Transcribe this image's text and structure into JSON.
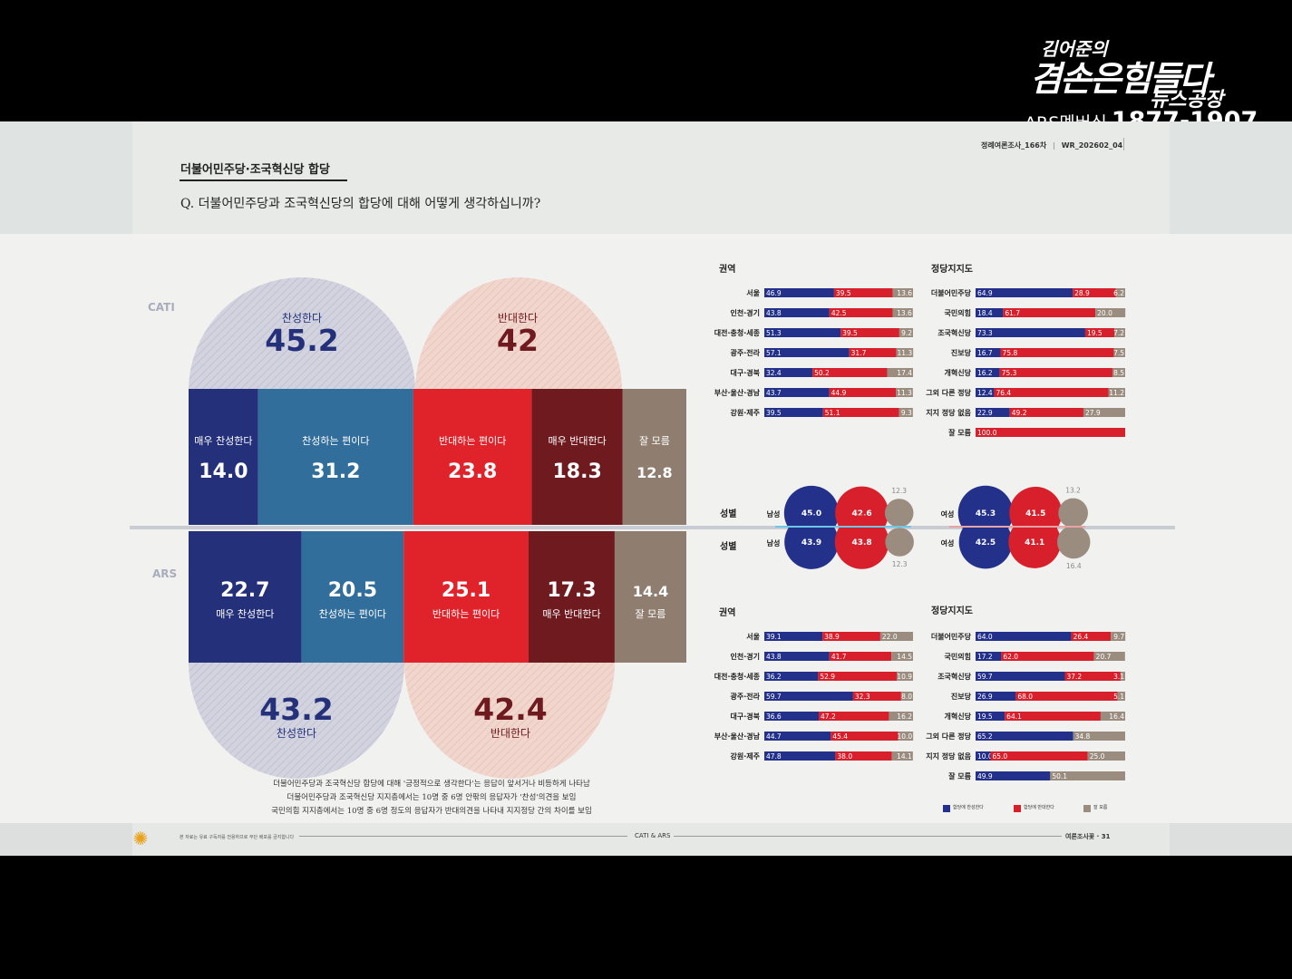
{
  "logo": {
    "line1": "김어준의",
    "line2": "겸손은힘들다",
    "line3": "뉴스공장",
    "membership_label": "ARS멤버십",
    "membership_number": "1877-1907"
  },
  "header": {
    "code_left": "정례여론조사_166차",
    "code_right": "WR_202602_04",
    "title": "더불어민주당·조국혁신당 합당",
    "question": "Q. 더불어민주당과 조국혁신당의 합당에 대해 어떻게 생각하십니까?"
  },
  "chart_data": [
    {
      "type": "bar",
      "name": "CATI",
      "group_label": "CATI",
      "summary": [
        {
          "label": "찬성한다",
          "value": 45.2
        },
        {
          "label": "반대한다",
          "value": 42.0
        }
      ],
      "categories": [
        "매우 찬성한다",
        "찬성하는 편이다",
        "반대하는 편이다",
        "매우 반대한다",
        "잘 모름"
      ],
      "values": [
        14.0,
        31.2,
        23.8,
        18.3,
        12.8
      ]
    },
    {
      "type": "bar",
      "name": "ARS",
      "group_label": "ARS",
      "summary": [
        {
          "label": "찬성한다",
          "value": 43.2
        },
        {
          "label": "반대한다",
          "value": 42.4
        }
      ],
      "categories": [
        "매우 찬성한다",
        "찬성하는 편이다",
        "반대하는 편이다",
        "매우 반대한다",
        "잘 모름"
      ],
      "values": [
        22.7,
        20.5,
        25.1,
        17.3,
        14.4
      ]
    },
    {
      "type": "bar",
      "name": "CATI 권역",
      "title": "권역",
      "stacked": true,
      "categories": [
        "서울",
        "인천·경기",
        "대전·충청·세종",
        "광주·전라",
        "대구·경북",
        "부산·울산·경남",
        "강원·제주"
      ],
      "series": [
        {
          "name": "합당에 찬성한다",
          "values": [
            46.9,
            43.8,
            51.3,
            57.1,
            32.4,
            43.7,
            39.5
          ]
        },
        {
          "name": "합당에 반대한다",
          "values": [
            39.5,
            42.5,
            39.5,
            31.7,
            50.2,
            44.9,
            51.1
          ]
        },
        {
          "name": "잘 모름",
          "values": [
            13.6,
            13.6,
            9.2,
            11.3,
            17.4,
            11.3,
            9.3
          ]
        }
      ]
    },
    {
      "type": "bar",
      "name": "CATI 정당지지도",
      "title": "정당지지도",
      "stacked": true,
      "categories": [
        "더불어민주당",
        "국민의힘",
        "조국혁신당",
        "진보당",
        "개혁신당",
        "그외 다른 정당",
        "지지 정당 없음",
        "잘 모름"
      ],
      "series": [
        {
          "name": "합당에 찬성한다",
          "values": [
            64.9,
            18.4,
            73.3,
            16.7,
            16.2,
            12.4,
            22.9,
            0
          ]
        },
        {
          "name": "합당에 반대한다",
          "values": [
            28.9,
            61.7,
            19.5,
            75.8,
            75.3,
            76.4,
            49.2,
            100.0
          ]
        },
        {
          "name": "잘 모름",
          "values": [
            6.2,
            20.0,
            7.2,
            7.5,
            8.5,
            11.2,
            27.9,
            0
          ]
        }
      ]
    },
    {
      "type": "bar",
      "name": "성별",
      "title": "성별",
      "categories": [
        "남성",
        "여성"
      ],
      "cati": [
        {
          "label": "남성",
          "values": [
            45.0,
            42.6,
            12.3
          ]
        },
        {
          "label": "여성",
          "values": [
            45.3,
            41.5,
            13.2
          ]
        }
      ],
      "ars": [
        {
          "label": "남성",
          "values": [
            43.9,
            43.8,
            12.3
          ]
        },
        {
          "label": "여성",
          "values": [
            42.5,
            41.1,
            16.4
          ]
        }
      ]
    },
    {
      "type": "bar",
      "name": "ARS 권역",
      "title": "권역",
      "stacked": true,
      "categories": [
        "서울",
        "인천·경기",
        "대전·충청·세종",
        "광주·전라",
        "대구·경북",
        "부산·울산·경남",
        "강원·제주"
      ],
      "series": [
        {
          "name": "합당에 찬성한다",
          "values": [
            39.1,
            43.8,
            36.2,
            59.7,
            36.6,
            44.7,
            47.8
          ]
        },
        {
          "name": "합당에 반대한다",
          "values": [
            38.9,
            41.7,
            52.9,
            32.3,
            47.2,
            45.4,
            38.0
          ]
        },
        {
          "name": "잘 모름",
          "values": [
            22.0,
            14.5,
            10.9,
            8.0,
            16.2,
            10.0,
            14.1
          ]
        }
      ]
    },
    {
      "type": "bar",
      "name": "ARS 정당지지도",
      "title": "정당지지도",
      "stacked": true,
      "categories": [
        "더불어민주당",
        "국민의힘",
        "조국혁신당",
        "진보당",
        "개혁신당",
        "그외 다른 정당",
        "지지 정당 없음",
        "잘 모름"
      ],
      "series": [
        {
          "name": "합당에 찬성한다",
          "values": [
            64.0,
            17.2,
            59.7,
            26.9,
            19.5,
            65.2,
            10.0,
            49.9
          ]
        },
        {
          "name": "합당에 반대한다",
          "values": [
            26.4,
            62.0,
            37.2,
            68.0,
            64.1,
            0,
            65.0,
            0
          ]
        },
        {
          "name": "잘 모름",
          "values": [
            9.7,
            20.7,
            3.1,
            5.1,
            16.4,
            34.8,
            25.0,
            50.1
          ]
        }
      ]
    }
  ],
  "colors": {
    "navy": "#24307a",
    "steel": "#326e9b",
    "red": "#e0222a",
    "maroon": "#6e1a1e",
    "taupe": "#8f7e6f",
    "bar_blue": "#23318a",
    "bar_red": "#d7202b",
    "bar_gray": "#9b8c80"
  },
  "legend": [
    "합당에 찬성한다",
    "합당에 반대한다",
    "잘 모름"
  ],
  "notes": [
    "더불어민주당과 조국혁신당 합당에 대해 '긍정적으로 생각한다'는 응답이 앞서거나 비등하게 나타남",
    "더불어민주당과 조국혁신당 지지층에서는 10명 중 6명 안팎의 응답자가 '찬성'의견을 보임",
    "국민의힘 지지층에서는 10명 중 6명 정도의 응답자가 반대의견을 나타내 지지정당 간의 차이를 보임"
  ],
  "footer": {
    "disclaimer": "본 자료는 유료 구독자를 전용하므로 무단 배포를 금지합니다",
    "center": "CATI & ARS",
    "right": "여론조사꽃 · 31"
  }
}
